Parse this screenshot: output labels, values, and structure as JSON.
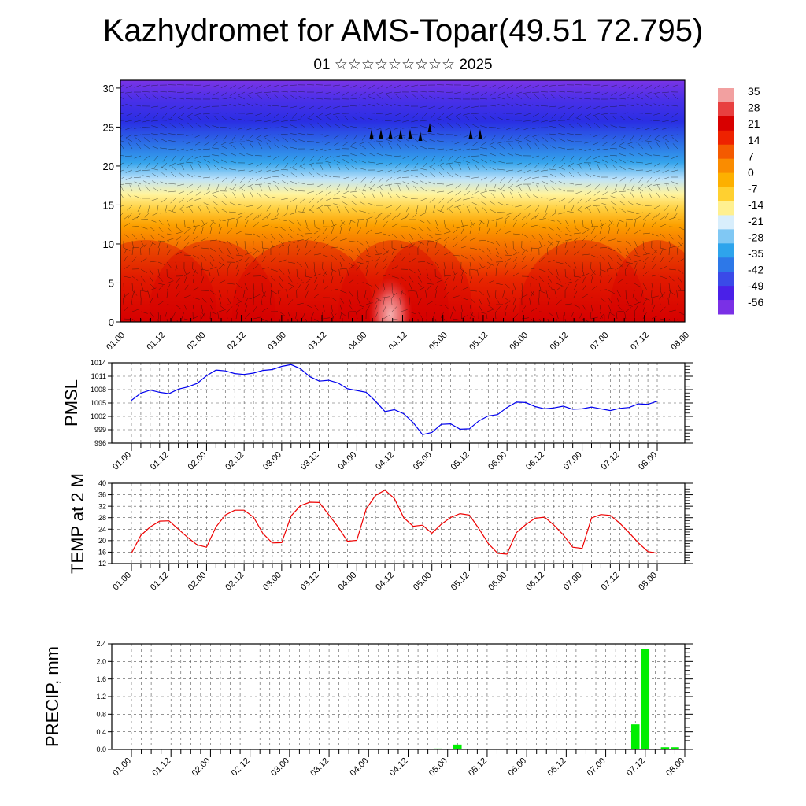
{
  "header": {
    "title": "Kazhydromet for AMS-Topar(49.51 72.795)",
    "subtitle": "01 ☆☆☆☆☆☆☆☆☆ 2025"
  },
  "time_labels": [
    "01.00",
    "01.12",
    "02.00",
    "02.12",
    "03.00",
    "03.12",
    "04.00",
    "04.12",
    "05.00",
    "05.12",
    "06.00",
    "06.12",
    "07.00",
    "07.12",
    "08.00"
  ],
  "colors": {
    "pmsl_line": "#0000ee",
    "temp_line": "#ee0000",
    "precip_bar": "#00ee00",
    "grid": "#555555"
  },
  "chart_data": [
    {
      "type": "heatmap",
      "name": "vertical-section",
      "yticks": [
        "0",
        "5",
        "10",
        "15",
        "20",
        "25",
        "30"
      ],
      "ylim": [
        0,
        31
      ],
      "colorbar_labels": [
        "35",
        "28",
        "21",
        "14",
        "7",
        "0",
        "-7",
        "-14",
        "-21",
        "-28",
        "-35",
        "-42",
        "-49",
        "-56"
      ],
      "colorbar_colors": [
        "#f2a0a0",
        "#e84040",
        "#d80000",
        "#ee2200",
        "#f45a00",
        "#fa8c00",
        "#fdb000",
        "#ffd030",
        "#fff090",
        "#d8eefc",
        "#80c8f4",
        "#2ea4ec",
        "#2d78e8",
        "#3a4ae8",
        "#4a20e8",
        "#7a30e6"
      ],
      "overlay": "wind arrows"
    },
    {
      "type": "line",
      "name": "pmsl",
      "ylabel": "PMSL",
      "ylim": [
        996,
        1014
      ],
      "yticks": [
        "996",
        "999",
        "1002",
        "1005",
        "1008",
        "1011",
        "1014"
      ],
      "values": [
        1005.6,
        1007.2,
        1007.9,
        1007.4,
        1007.1,
        1008.1,
        1008.6,
        1009.4,
        1011.1,
        1012.4,
        1012.2,
        1011.6,
        1011.4,
        1011.7,
        1012.3,
        1012.5,
        1013.2,
        1013.6,
        1012.7,
        1010.9,
        1009.9,
        1010.1,
        1009.5,
        1008.2,
        1007.8,
        1007.4,
        1005.4,
        1003.1,
        1003.5,
        1002.6,
        1000.6,
        997.9,
        998.4,
        1000.2,
        1000.3,
        999.1,
        999.2,
        1001.0,
        1002.1,
        1002.4,
        1004.0,
        1005.2,
        1005.1,
        1004.2,
        1003.7,
        1003.9,
        1004.3,
        1003.6,
        1003.7,
        1004.1,
        1003.7,
        1003.3,
        1003.8,
        1004.0,
        1004.8,
        1004.7,
        1005.4
      ]
    },
    {
      "type": "line",
      "name": "temp2m",
      "ylabel": "TEMP at 2 M",
      "ylim": [
        12,
        40
      ],
      "yticks": [
        "12",
        "16",
        "20",
        "24",
        "28",
        "32",
        "36",
        "40"
      ],
      "values": [
        15.6,
        21.8,
        24.8,
        26.8,
        26.9,
        24.0,
        21.1,
        18.5,
        17.7,
        24.8,
        28.9,
        30.6,
        30.6,
        28.2,
        22.5,
        19.2,
        19.3,
        28.6,
        32.2,
        33.4,
        33.3,
        29.1,
        24.8,
        19.8,
        20.1,
        31.0,
        35.8,
        37.6,
        34.7,
        28.0,
        25.0,
        25.4,
        22.6,
        25.7,
        28.1,
        29.4,
        28.9,
        24.2,
        19.0,
        15.6,
        15.3,
        22.8,
        25.6,
        27.8,
        28.2,
        25.4,
        22.0,
        17.7,
        17.3,
        27.9,
        29.1,
        28.8,
        26.1,
        22.8,
        19.2,
        16.2,
        15.6
      ]
    },
    {
      "type": "bar",
      "name": "precip",
      "ylabel": "PRECIP, mm",
      "ylim": [
        0,
        2.4
      ],
      "yticks": [
        "0.0",
        "0.4",
        "0.8",
        "1.2",
        "1.6",
        "2.0",
        "2.4"
      ],
      "bars": [
        {
          "index": 31,
          "value": 0.02
        },
        {
          "index": 33,
          "value": 0.11
        },
        {
          "index": 51,
          "value": 0.57
        },
        {
          "index": 52,
          "value": 2.28
        },
        {
          "index": 54,
          "value": 0.05
        },
        {
          "index": 55,
          "value": 0.05
        }
      ]
    }
  ]
}
